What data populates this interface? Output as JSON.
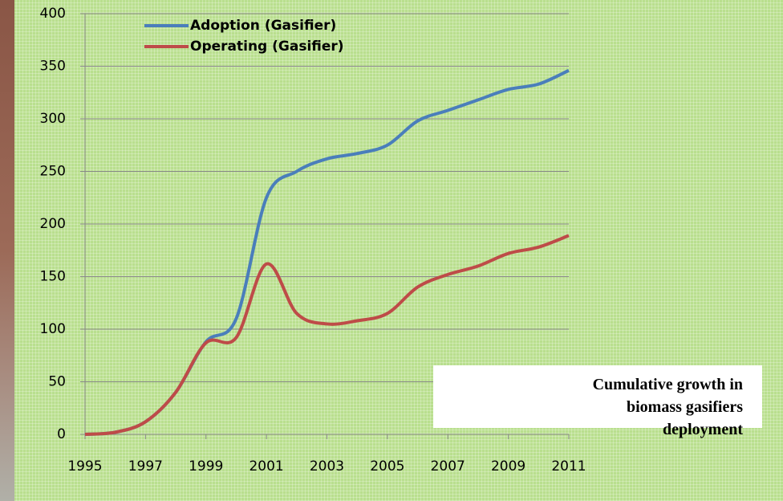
{
  "chart_data": {
    "type": "line",
    "title": "Cumulative growth in biomass gasifiers deployment",
    "x": [
      1995,
      1996,
      1997,
      1998,
      1999,
      2000,
      2001,
      2002,
      2003,
      2004,
      2005,
      2006,
      2007,
      2008,
      2009,
      2010,
      2011
    ],
    "series": [
      {
        "name": "Adoption (Gasifier)",
        "color": "#4a7ebb",
        "values": [
          0,
          2,
          12,
          40,
          88,
          110,
          225,
          250,
          262,
          267,
          275,
          298,
          308,
          318,
          328,
          333,
          346
        ]
      },
      {
        "name": "Operating (Gasifier)",
        "color": "#be4b48",
        "values": [
          0,
          2,
          12,
          40,
          87,
          92,
          162,
          115,
          105,
          108,
          115,
          140,
          152,
          160,
          172,
          178,
          189
        ]
      }
    ],
    "xlim": [
      1995,
      2011
    ],
    "xticks": [
      1995,
      1997,
      1999,
      2001,
      2003,
      2005,
      2007,
      2009,
      2011
    ],
    "ylim": [
      0,
      400
    ],
    "yticks": [
      0,
      50,
      100,
      150,
      200,
      250,
      300,
      350,
      400
    ],
    "grid": true
  }
}
